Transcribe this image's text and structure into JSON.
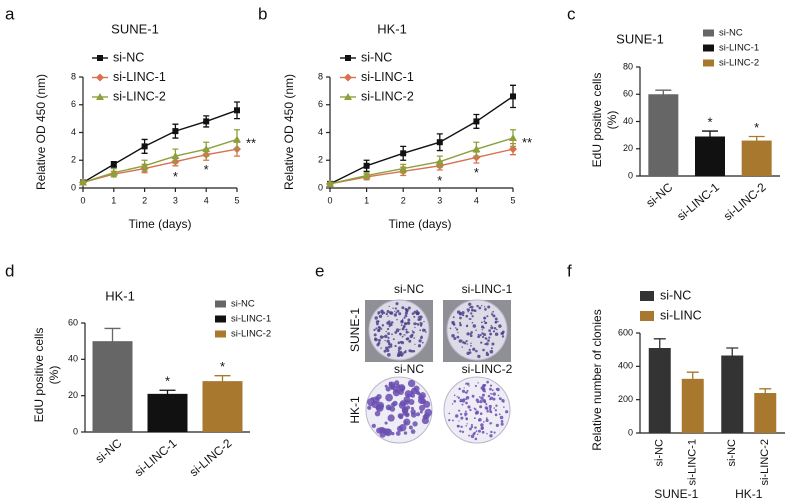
{
  "chart_data": [
    {
      "type": "line",
      "label": "a",
      "title": "SUNE-1",
      "xlabel": "Time (days)",
      "ylabel": "Relative OD 450 (nm)",
      "x": [
        0,
        1,
        2,
        3,
        4,
        5
      ],
      "xlim": [
        0,
        5
      ],
      "xticks": [
        0,
        1,
        2,
        3,
        4,
        5
      ],
      "ylim": [
        0,
        8
      ],
      "yticks": [
        0,
        2,
        4,
        6,
        8
      ],
      "series": [
        {
          "name": "si-NC",
          "color": "#111111",
          "marker": "square",
          "values": [
            0.4,
            1.7,
            3.0,
            4.1,
            4.8,
            5.6
          ],
          "errors": [
            0.1,
            0.2,
            0.5,
            0.5,
            0.4,
            0.6
          ]
        },
        {
          "name": "si-LINC-1",
          "color": "#d9704f",
          "marker": "diamond",
          "values": [
            0.4,
            1.0,
            1.4,
            1.9,
            2.4,
            2.8
          ],
          "errors": [
            0.1,
            0.2,
            0.3,
            0.3,
            0.4,
            0.5
          ]
        },
        {
          "name": "si-LINC-2",
          "color": "#8ca03c",
          "marker": "triangle",
          "values": [
            0.4,
            1.1,
            1.6,
            2.3,
            2.8,
            3.5
          ],
          "errors": [
            0.1,
            0.3,
            0.4,
            0.5,
            0.5,
            0.7
          ]
        }
      ],
      "annotations": [
        {
          "text": "*",
          "x": 3
        },
        {
          "text": "*",
          "x": 4
        },
        {
          "text": "**",
          "x": 5
        }
      ]
    },
    {
      "type": "line",
      "label": "b",
      "title": "HK-1",
      "xlabel": "Time (days)",
      "ylabel": "Relative OD 450 (nm)",
      "x": [
        0,
        1,
        2,
        3,
        4,
        5
      ],
      "xlim": [
        0,
        5
      ],
      "xticks": [
        0,
        1,
        2,
        3,
        4,
        5
      ],
      "ylim": [
        0,
        8
      ],
      "yticks": [
        0,
        2,
        4,
        6,
        8
      ],
      "series": [
        {
          "name": "si-NC",
          "color": "#111111",
          "marker": "square",
          "values": [
            0.3,
            1.6,
            2.5,
            3.3,
            4.8,
            6.6
          ],
          "errors": [
            0.1,
            0.4,
            0.5,
            0.6,
            0.5,
            0.8
          ]
        },
        {
          "name": "si-LINC-1",
          "color": "#d9704f",
          "marker": "diamond",
          "values": [
            0.3,
            0.8,
            1.2,
            1.6,
            2.2,
            2.8
          ],
          "errors": [
            0.1,
            0.2,
            0.3,
            0.3,
            0.4,
            0.4
          ]
        },
        {
          "name": "si-LINC-2",
          "color": "#8ca03c",
          "marker": "triangle",
          "values": [
            0.3,
            0.9,
            1.4,
            1.9,
            2.8,
            3.6
          ],
          "errors": [
            0.1,
            0.2,
            0.3,
            0.4,
            0.5,
            0.6
          ]
        }
      ],
      "annotations": [
        {
          "text": "*",
          "x": 3
        },
        {
          "text": "*",
          "x": 4
        },
        {
          "text": "**",
          "x": 5
        }
      ]
    },
    {
      "type": "bar",
      "label": "c",
      "title": "SUNE-1",
      "ylabel": [
        "EdU positive cells",
        "(%)"
      ],
      "categories": [
        "si-NC",
        "si-LINC-1",
        "si-LINC-2"
      ],
      "values": [
        60,
        29,
        26
      ],
      "errors": [
        3,
        4,
        3
      ],
      "colors": [
        "#666666",
        "#111111",
        "#a8782f"
      ],
      "ylim": [
        0,
        80
      ],
      "yticks": [
        0,
        20,
        40,
        60,
        80
      ],
      "annotations": [
        {
          "text": "*",
          "category": 1
        },
        {
          "text": "*",
          "category": 2
        }
      ]
    },
    {
      "type": "bar",
      "label": "d",
      "title": "HK-1",
      "ylabel": [
        "EdU positive cells",
        "(%)"
      ],
      "categories": [
        "si-NC",
        "si-LINC-1",
        "si-LINC-2"
      ],
      "values": [
        50,
        21,
        28
      ],
      "errors": [
        7,
        2,
        3
      ],
      "colors": [
        "#666666",
        "#111111",
        "#a8782f"
      ],
      "ylim": [
        0,
        60
      ],
      "yticks": [
        0,
        20,
        40,
        60
      ],
      "annotations": [
        {
          "text": "*",
          "category": 1
        },
        {
          "text": "*",
          "category": 2
        }
      ]
    },
    {
      "type": "bar",
      "label": "f",
      "ylabel": "Relative number of clonies",
      "categories": [
        "SUNE-1",
        "HK-1"
      ],
      "bar_labels": [
        [
          "si-NC",
          "si-LINC-1"
        ],
        [
          "si-NC",
          "si-LINC-2"
        ]
      ],
      "ylim": [
        0,
        600
      ],
      "yticks": [
        0,
        200,
        400,
        600
      ],
      "series": [
        {
          "name": "si-NC",
          "color": "#333333",
          "values": [
            510,
            465
          ],
          "errors": [
            55,
            45
          ]
        },
        {
          "name": "si-LINC",
          "color": "#a8782f",
          "values": [
            325,
            240
          ],
          "errors": [
            40,
            25
          ]
        }
      ]
    }
  ],
  "panel_e": {
    "label": "e",
    "rows": [
      {
        "name": "SUNE-1",
        "columns": [
          "si-NC",
          "si-LINC-1"
        ]
      },
      {
        "name": "HK-1",
        "columns": [
          "si-NC",
          "si-LINC-2"
        ]
      }
    ]
  }
}
